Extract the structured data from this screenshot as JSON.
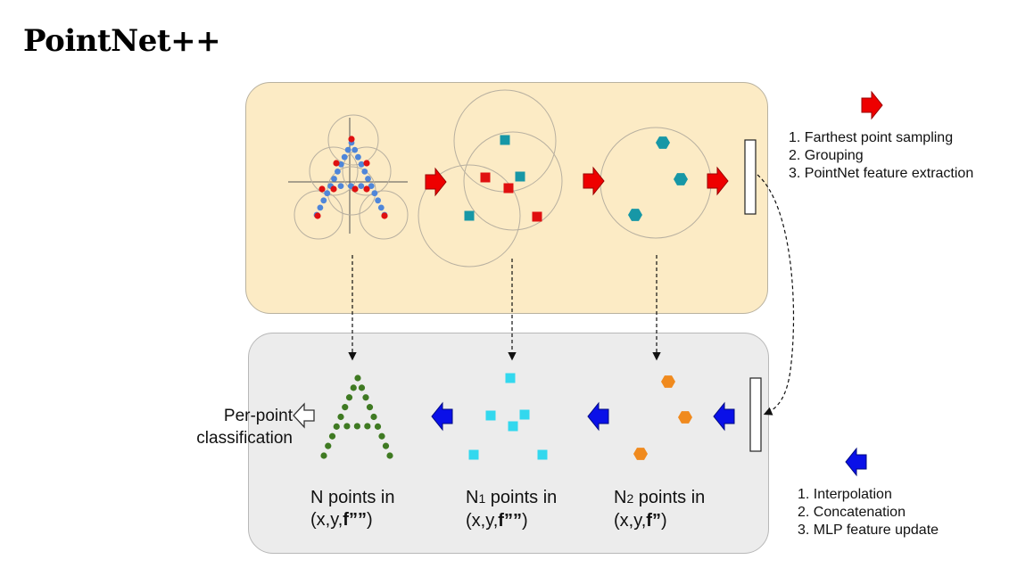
{
  "title": "PointNet++",
  "encoder_steps": [
    "1. Farthest point sampling",
    "2. Grouping",
    "3. PointNet feature extraction"
  ],
  "decoder_steps": [
    "1. Interpolation",
    "2. Concatenation",
    "3. MLP feature update"
  ],
  "classification_label": [
    "Per-point",
    "classification"
  ],
  "point_sets": [
    {
      "line1_prefix": "N",
      "line1_sub": "",
      "line1_suffix": " points in",
      "coords": "(x,y,",
      "feature": "f””",
      "close": ")"
    },
    {
      "line1_prefix": "N",
      "line1_sub": "1",
      "line1_suffix": " points in",
      "coords": "(x,y,",
      "feature": "f””",
      "close": ")"
    },
    {
      "line1_prefix": "N",
      "line1_sub": "2",
      "line1_suffix": " points in",
      "coords": "(x,y,",
      "feature": "f”",
      "close": ")"
    }
  ],
  "colors": {
    "encoder_panel": "#fcebc5",
    "decoder_panel": "#ececec",
    "down_arrow": "#ee0000",
    "up_arrow": "#0a10e8",
    "input_points": "#4f86d9",
    "sampled_points": "#e01010",
    "level1_features": "#1797a6",
    "level2_features": "#1797a6",
    "output_points": "#3f7a22",
    "up_level1_points": "#33d8ee",
    "up_level2_points": "#f08a1e"
  },
  "icons": [
    "red-arrow-icon",
    "blue-arrow-icon",
    "hollow-arrow-icon"
  ]
}
